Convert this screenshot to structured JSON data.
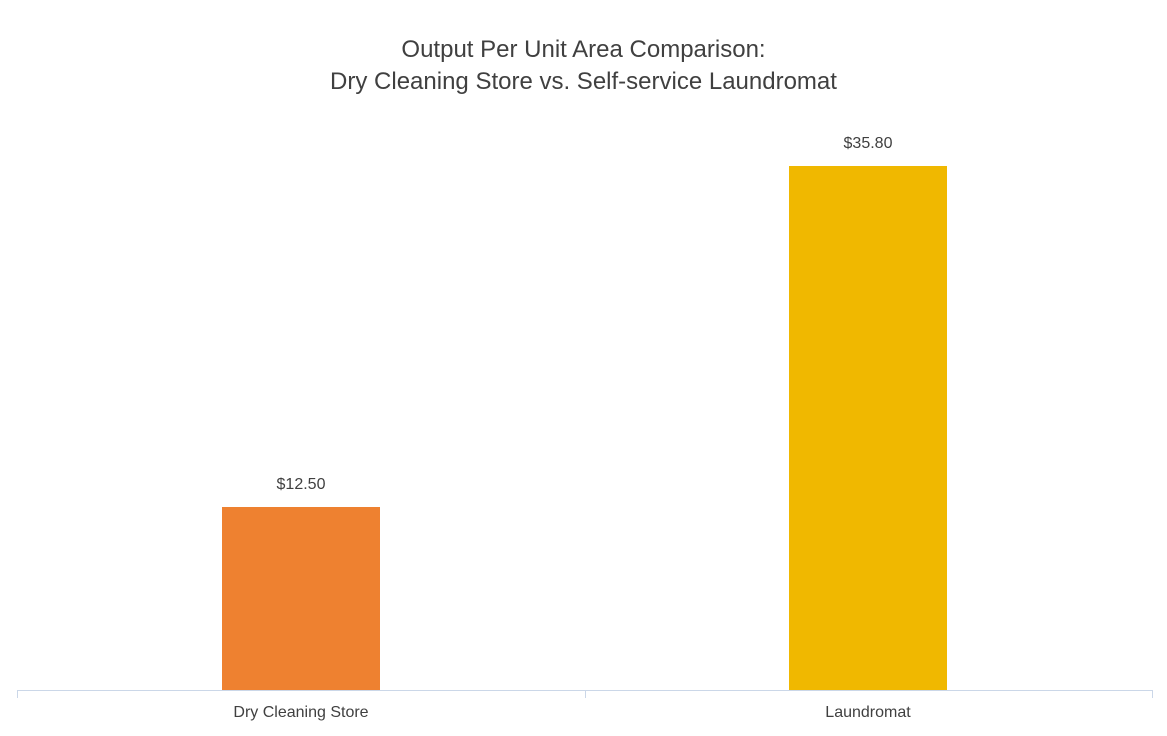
{
  "chart_data": {
    "type": "bar",
    "title": "Output Per Unit Area Comparison:\nDry Cleaning Store vs. Self-service Laundromat",
    "title_lines": [
      "Output Per Unit Area Comparison:",
      "Dry Cleaning Store vs. Self-service Laundromat"
    ],
    "categories": [
      "Dry Cleaning Store",
      "Laundromat"
    ],
    "values": [
      12.5,
      35.8
    ],
    "value_labels": [
      "$12.50",
      "$35.80"
    ],
    "bar_colors": [
      "#EE8130",
      "#F0B800"
    ],
    "xlabel": "",
    "ylabel": "",
    "ylim": [
      0,
      35.8
    ],
    "grid": false,
    "legend": "none",
    "text_color": "#404040",
    "axis_line_color": "#CBD7E8"
  }
}
